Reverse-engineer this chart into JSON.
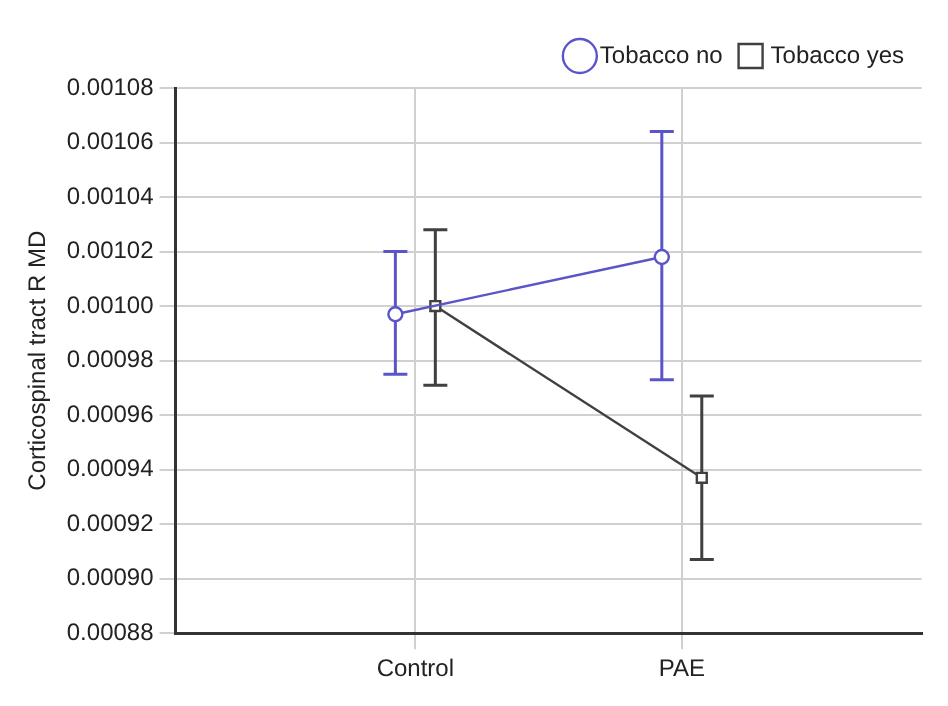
{
  "chart_data": {
    "type": "line",
    "ylabel": "Corticospinal tract R MD",
    "categories": [
      "Control",
      "PAE"
    ],
    "series": [
      {
        "name": "Tobacco no",
        "color": "#5a55c8",
        "values": [
          0.000997,
          0.001018
        ],
        "errors": [
          [
            0.000975,
            0.00102
          ],
          [
            0.000973,
            0.001064
          ]
        ],
        "marker": "circle"
      },
      {
        "name": "Tobacco yes",
        "color": "#404040",
        "values": [
          0.001,
          0.000937
        ],
        "errors": [
          [
            0.000971,
            0.001028
          ],
          [
            0.000907,
            0.000967
          ]
        ],
        "marker": "square"
      }
    ],
    "ylim": [
      0.00088,
      0.00108
    ],
    "yticks": [
      0.00088,
      {
        "value": 0.0009,
        "label": "0.00090"
      },
      0.00092,
      0.00094,
      0.00096,
      0.00098,
      {
        "value": 0.001,
        "label": "0.00100"
      },
      0.00102,
      0.00104,
      0.00106,
      0.00108
    ],
    "grid": true,
    "legend": "top right"
  }
}
